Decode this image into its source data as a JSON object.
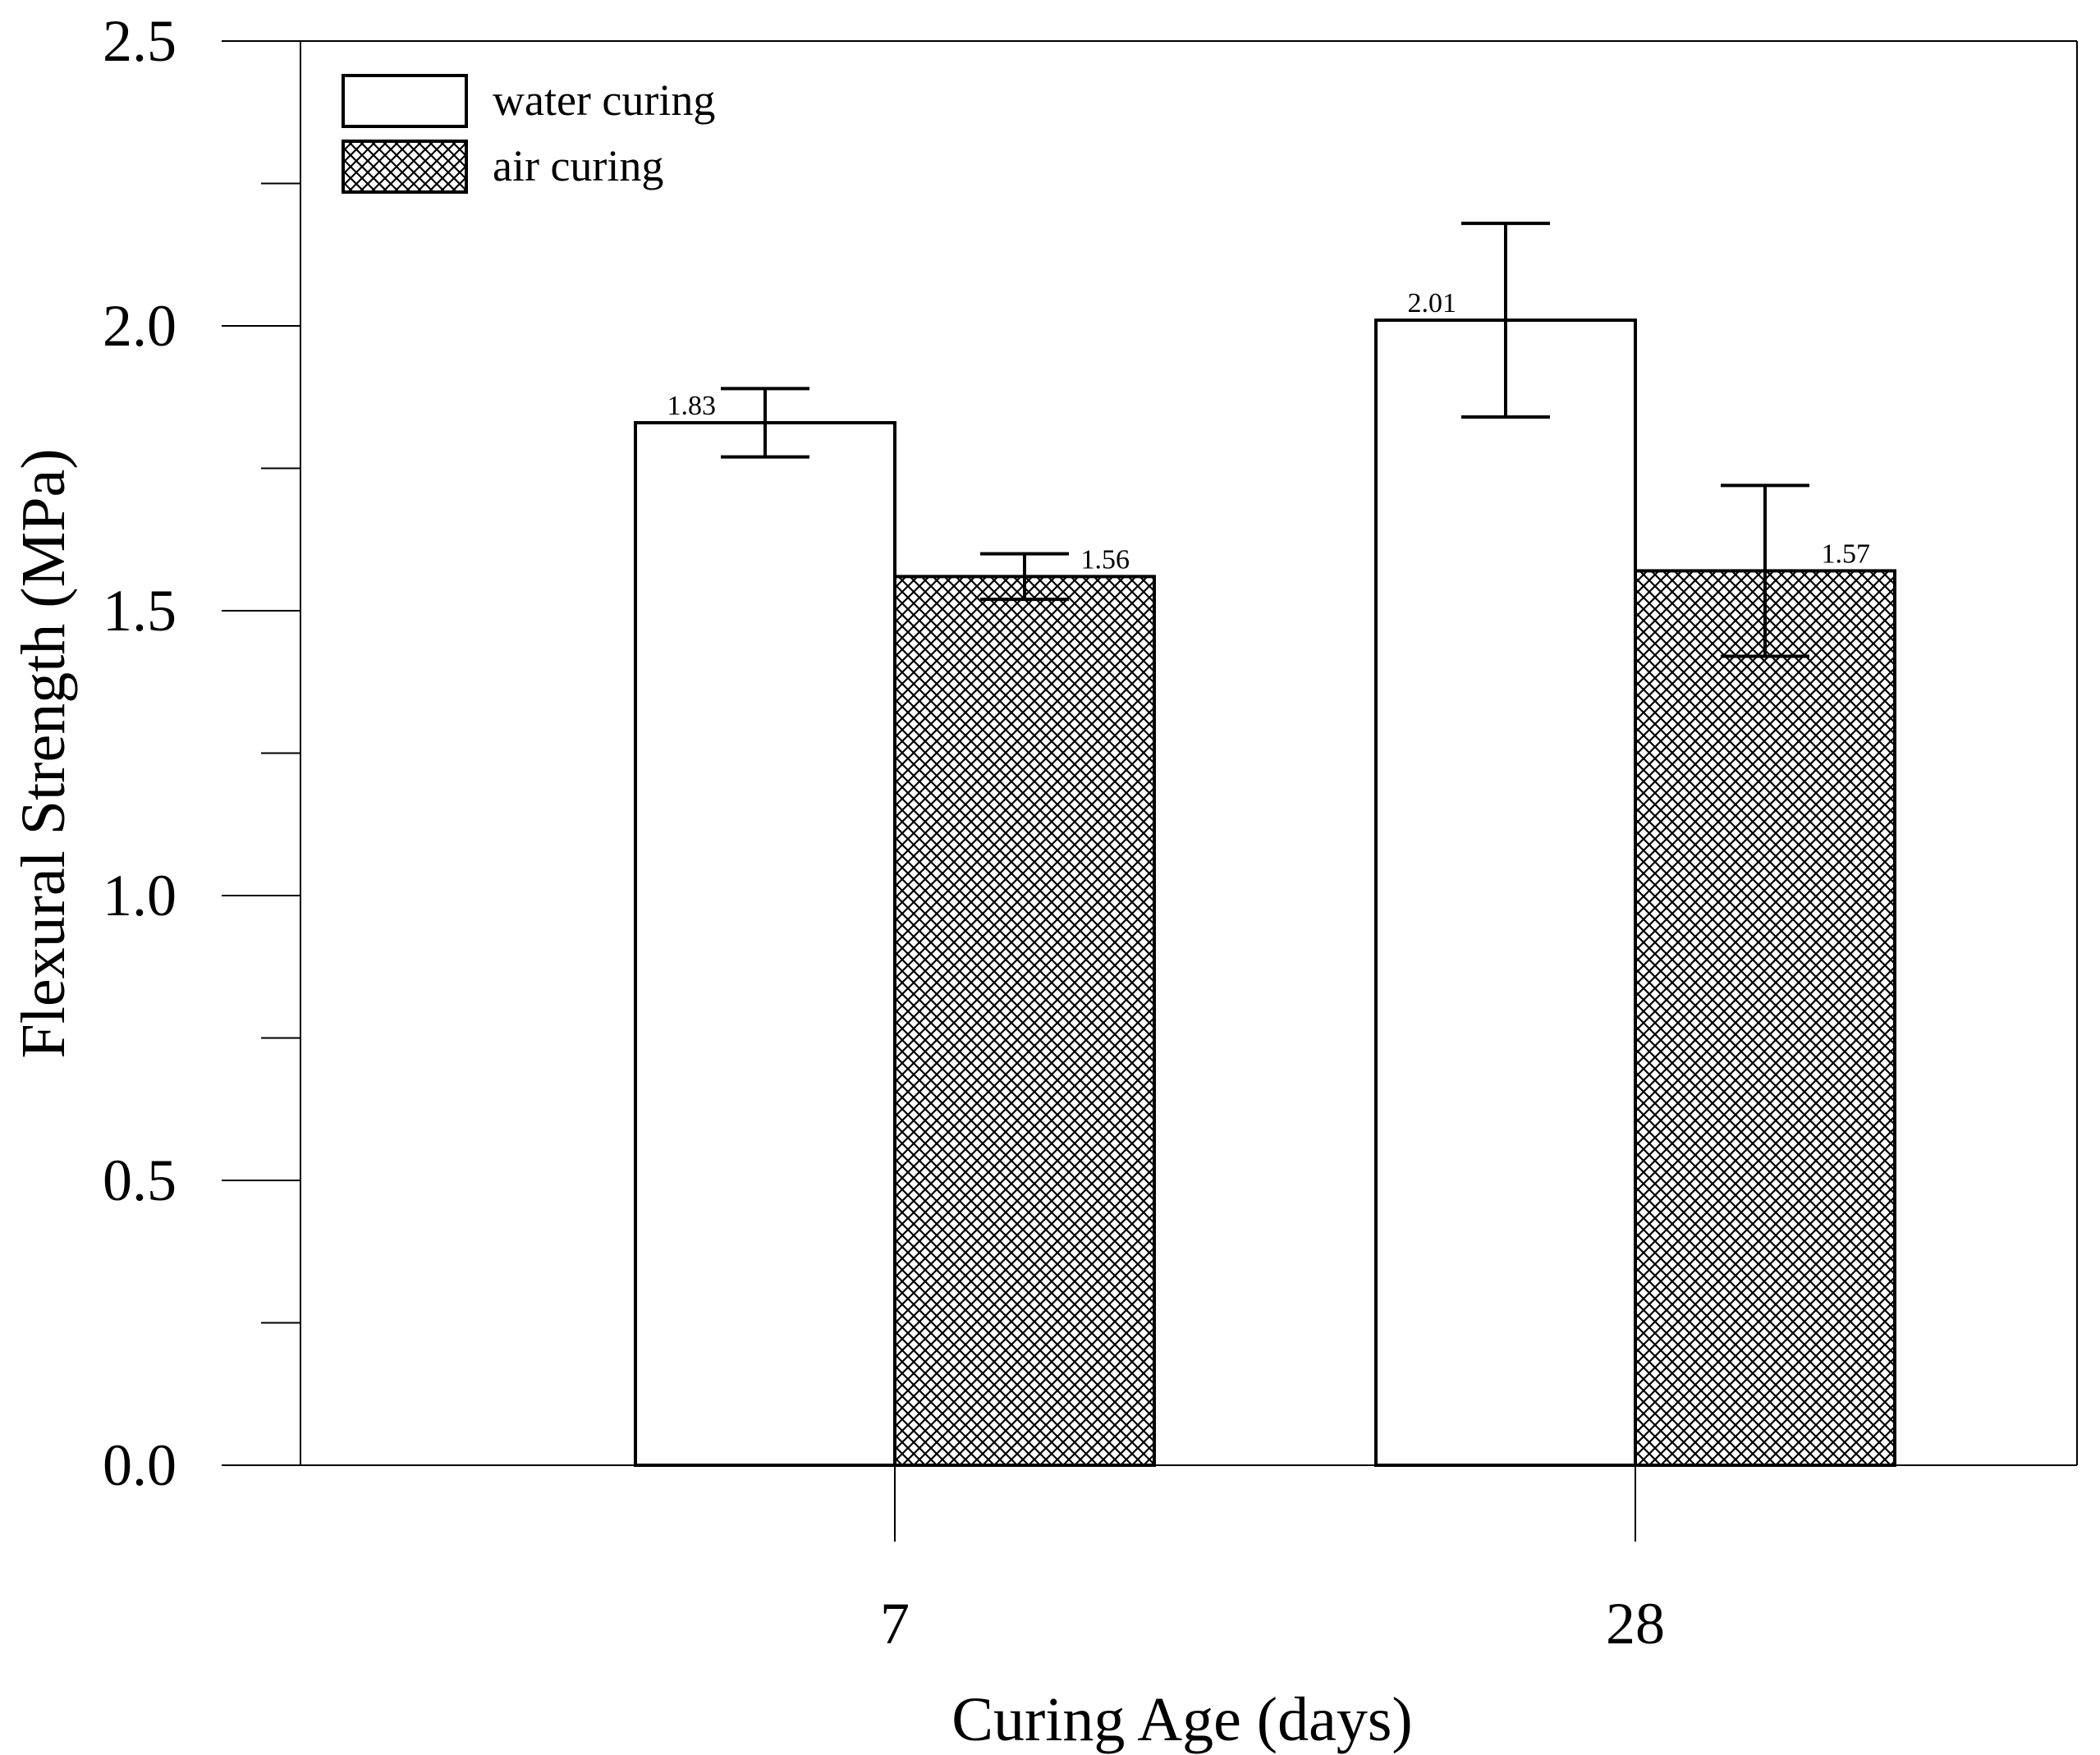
{
  "chart_data": {
    "type": "bar",
    "categories": [
      "7",
      "28"
    ],
    "series": [
      {
        "name": "water curing",
        "values": [
          1.83,
          2.01
        ],
        "error": [
          0.06,
          0.17
        ],
        "pattern": "none"
      },
      {
        "name": "air curing",
        "values": [
          1.56,
          1.57
        ],
        "error": [
          0.04,
          0.15
        ],
        "pattern": "crosshatch"
      }
    ],
    "data_labels": [
      [
        "1.83",
        "2.01"
      ],
      [
        "1.56",
        "1.57"
      ]
    ],
    "xlabel": "Curing Age (days)",
    "ylabel": "Flexural Strength (MPa)",
    "ylim": [
      0,
      2.5
    ],
    "yticks": [
      "0.0",
      "0.5",
      "1.0",
      "1.5",
      "2.0",
      "2.5"
    ],
    "legend_position": "top-left",
    "grid": false
  },
  "colors": {
    "axis": "#000000",
    "bar_fill": "#ffffff",
    "hatch": "#000000"
  }
}
